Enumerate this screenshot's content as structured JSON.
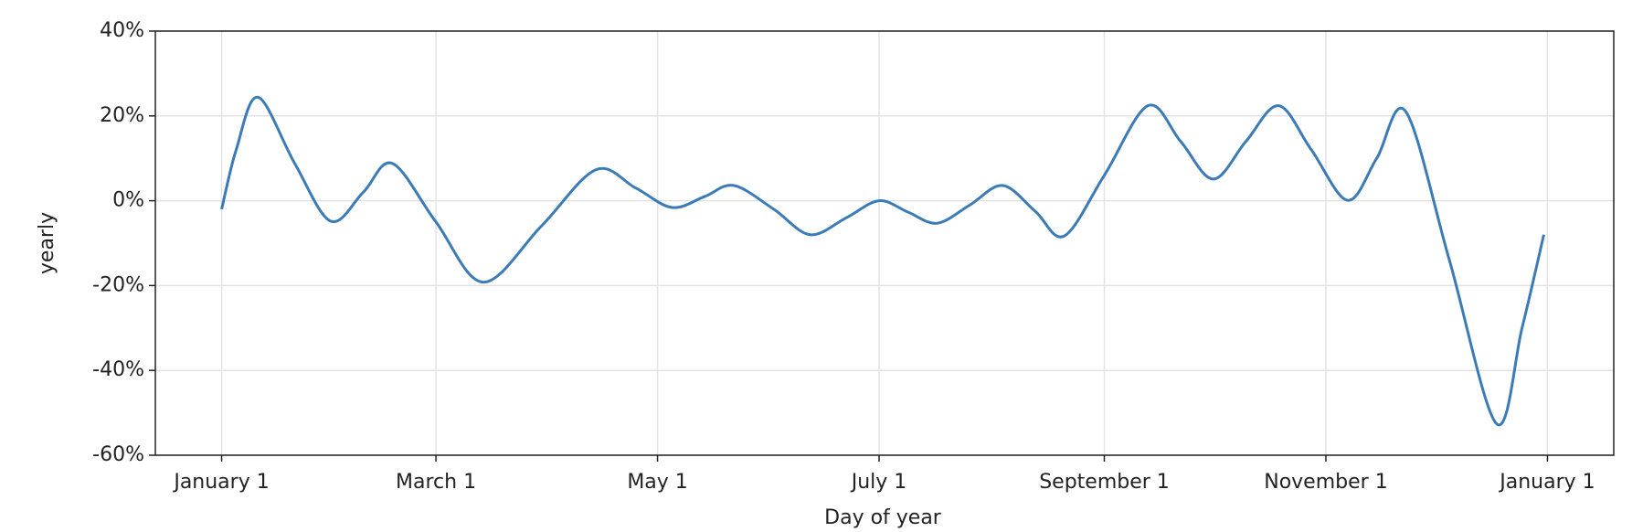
{
  "chart_data": {
    "type": "line",
    "xlabel": "Day of year",
    "ylabel": "yearly",
    "xlim": [
      -18.25,
      383.25
    ],
    "ylim": [
      -60,
      40
    ],
    "xticks": [
      {
        "value": 0,
        "label": "January 1"
      },
      {
        "value": 59,
        "label": "March 1"
      },
      {
        "value": 120,
        "label": "May 1"
      },
      {
        "value": 181,
        "label": "July 1"
      },
      {
        "value": 243,
        "label": "September 1"
      },
      {
        "value": 304,
        "label": "November 1"
      },
      {
        "value": 365,
        "label": "January 1"
      }
    ],
    "yticks": [
      {
        "value": -60,
        "label": "-60%"
      },
      {
        "value": -40,
        "label": "-40%"
      },
      {
        "value": -20,
        "label": "-20%"
      },
      {
        "value": 0,
        "label": "0%"
      },
      {
        "value": 20,
        "label": "20%"
      },
      {
        "value": 40,
        "label": "40%"
      }
    ],
    "grid": true,
    "series": [
      {
        "name": "yearly",
        "color": "#3a7bb8",
        "x": [
          0,
          4,
          10,
          20,
          30,
          39,
          47,
          59,
          72,
          88,
          103,
          114,
          124,
          133,
          141,
          152,
          162,
          172,
          181,
          189,
          197,
          206,
          215,
          224,
          232,
          243,
          255,
          264,
          273,
          282,
          291,
          300,
          310,
          318,
          326,
          338,
          351,
          358,
          364
        ],
        "values": [
          -2,
          12,
          24.4,
          9,
          -4.8,
          2,
          8.8,
          -5,
          -19.2,
          -6,
          7.3,
          3,
          -1.6,
          1,
          3.6,
          -2,
          -8,
          -4,
          0,
          -2.7,
          -5.3,
          -1,
          3.6,
          -2.5,
          -8.3,
          6,
          22.4,
          14,
          5.1,
          14,
          22.4,
          12,
          0.1,
          10,
          21,
          -14,
          -52.6,
          -30,
          -8
        ]
      }
    ]
  }
}
